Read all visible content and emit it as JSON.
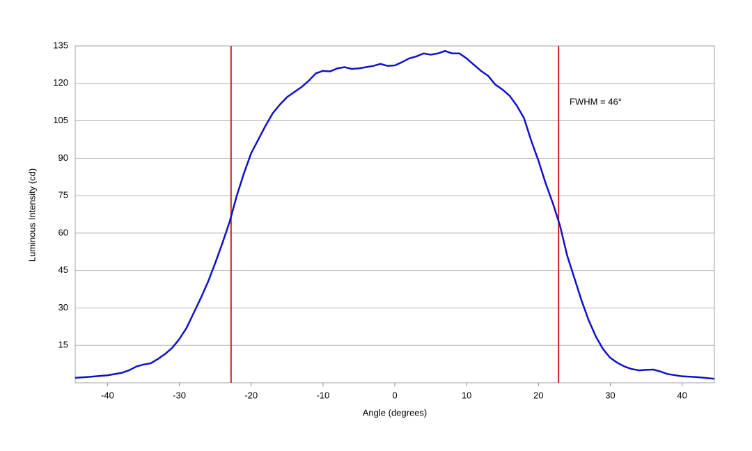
{
  "chart_data": {
    "type": "line",
    "xlabel": "Angle (degrees)",
    "ylabel": "Luminous Intensity (cd)",
    "annotation": "FWHM = 46°",
    "x": [
      -44.5,
      -42,
      -40,
      -38,
      -37,
      -36,
      -35,
      -34,
      -33,
      -32,
      -31,
      -30,
      -29,
      -28,
      -27,
      -26,
      -25,
      -24,
      -23,
      -22,
      -21,
      -20,
      -19,
      -18,
      -17,
      -16,
      -15,
      -14,
      -13,
      -12,
      -11,
      -10,
      -9,
      -8,
      -7,
      -6,
      -5,
      -4,
      -3,
      -2,
      -1,
      0,
      1,
      2,
      3,
      4,
      5,
      6,
      7,
      8,
      9,
      10,
      11,
      12,
      13,
      14,
      15,
      16,
      17,
      18,
      19,
      20,
      21,
      22,
      23,
      24,
      25,
      26,
      27,
      28,
      29,
      30,
      31,
      32,
      33,
      34,
      35,
      36,
      37,
      38,
      40,
      42,
      44.5
    ],
    "series": [
      {
        "color": "#1010c8",
        "values": [
          2,
          2.5,
          3,
          4,
          5,
          6.5,
          7.3,
          7.8,
          9.5,
          11.5,
          14,
          17.5,
          22,
          28,
          34,
          40.5,
          48,
          56,
          64.5,
          75,
          84,
          92,
          97.5,
          103,
          108,
          111.5,
          114.5,
          116.5,
          118.5,
          121,
          124,
          125,
          124.8,
          126,
          126.5,
          125.8,
          126,
          126.5,
          127,
          127.8,
          127,
          127.2,
          128.5,
          130,
          130.8,
          132,
          131.5,
          132,
          133,
          132,
          132,
          130,
          127.5,
          125,
          123,
          119.5,
          117.5,
          115,
          111,
          106,
          97,
          89,
          80,
          72,
          63,
          51,
          42,
          33,
          25,
          18.5,
          13.5,
          10,
          8,
          6.5,
          5.5,
          5,
          5.2,
          5.3,
          4.5,
          3.5,
          2.6,
          2.3,
          1.6
        ]
      }
    ],
    "vlines": [
      -22.8,
      22.8
    ],
    "vline_color": "#d02020",
    "xlim": [
      -44.5,
      44.5
    ],
    "xticks": [
      -40,
      -30,
      -20,
      -10,
      0,
      10,
      20,
      30,
      40
    ],
    "ylim": [
      0,
      135
    ],
    "yticks": [
      15,
      30,
      45,
      60,
      75,
      90,
      105,
      120,
      135
    ],
    "grid": true
  }
}
